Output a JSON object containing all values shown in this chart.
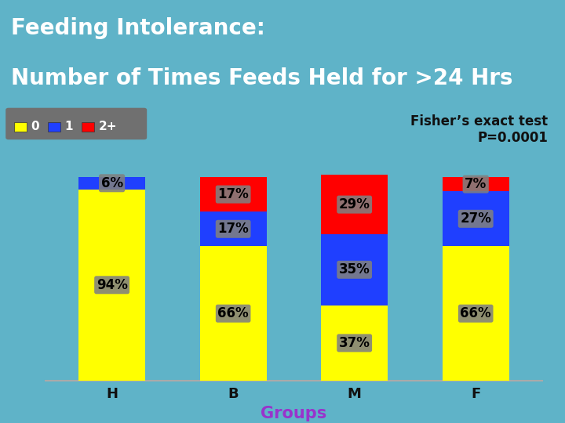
{
  "categories": [
    "H",
    "B",
    "M",
    "F"
  ],
  "values_0": [
    94,
    66,
    37,
    66
  ],
  "values_1": [
    6,
    17,
    35,
    27
  ],
  "values_2p": [
    0,
    17,
    29,
    7
  ],
  "color_0": "#FFFF00",
  "color_1": "#1F3FFF",
  "color_2p": "#FF0000",
  "legend_labels": [
    "0",
    "1",
    "2+"
  ],
  "title_line1": "Feeding Intolerance:",
  "title_line2": "Number of Times Feeds Held for >24 Hrs",
  "xlabel": "Groups",
  "fisher_text": "Fisher’s exact test\nP=0.0001",
  "bg_color": "#5fb3c8",
  "title_color": "#FFFFFF",
  "xlabel_color": "#9933CC",
  "label_bg_color": "#808080",
  "label_text_color": "#000000",
  "legend_bg_color": "#808080",
  "bar_width": 0.55,
  "ylim": [
    0,
    108
  ],
  "title_fontsize": 20,
  "tick_label_fontsize": 13,
  "bar_label_fontsize": 12,
  "fisher_fontsize": 12,
  "xlabel_fontsize": 15
}
